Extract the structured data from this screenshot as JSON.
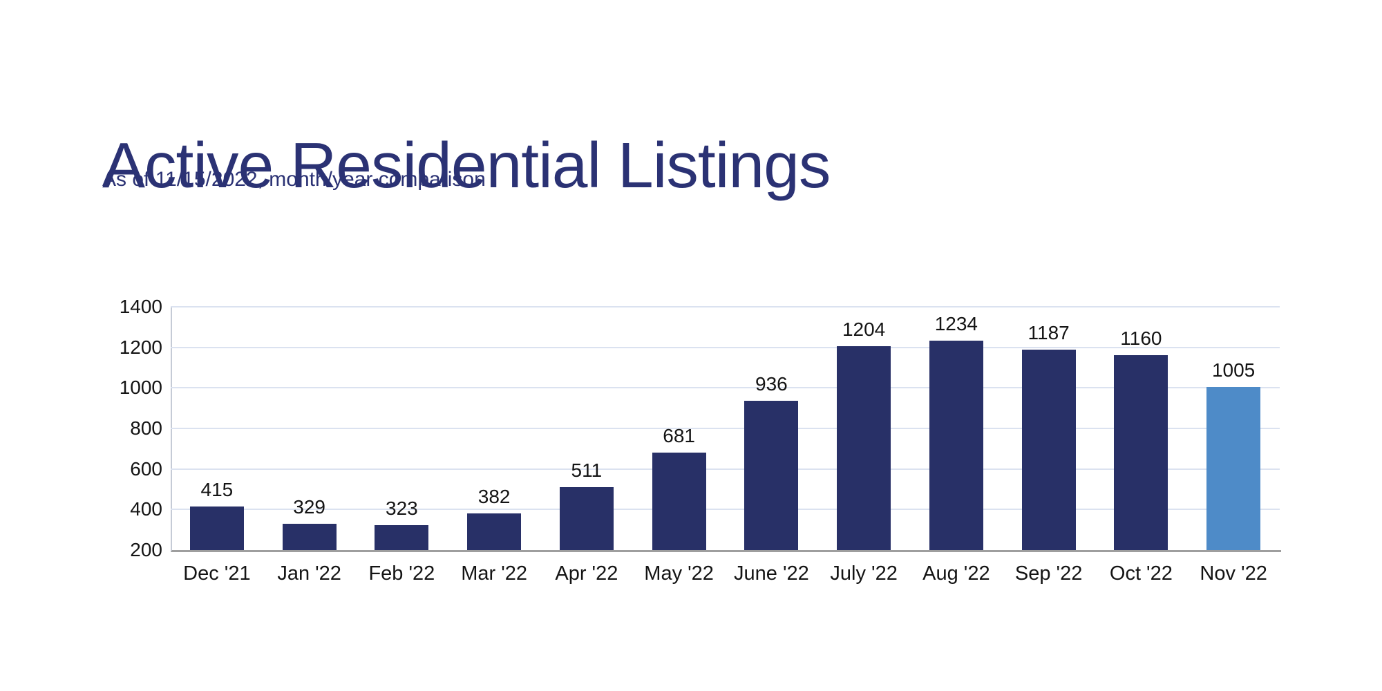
{
  "header": {
    "title_color": "#2b3274",
    "subtitle_color": "#2b3274"
  },
  "chart_data": {
    "type": "bar",
    "title": "Active Residential Listings",
    "subtitle": "As of 11/15/2022, month/year comparison",
    "categories": [
      "Dec '21",
      "Jan '22",
      "Feb '22",
      "Mar '22",
      "Apr '22",
      "May '22",
      "June '22",
      "July '22",
      "Aug '22",
      "Sep '22",
      "Oct '22",
      "Nov '22"
    ],
    "values": [
      415,
      329,
      323,
      382,
      511,
      681,
      936,
      1204,
      1234,
      1187,
      1160,
      1005
    ],
    "data_labels": true,
    "xlabel": "",
    "ylabel": "",
    "ylim": [
      200,
      1400
    ],
    "ytick_step": 200,
    "yticks": [
      200,
      400,
      600,
      800,
      1000,
      1200,
      1400
    ],
    "grid": "horizontal",
    "legend": "none",
    "bar_color": "#283067",
    "highlight_index": 11,
    "highlight_color": "#4e8bc8",
    "gridline_color": "#dbe2f0",
    "y_axis_line_color": "#c5cbd6",
    "x_axis_line_color": "#9e9e9e",
    "tick_label_color": "#141414",
    "value_label_color": "#141414"
  }
}
